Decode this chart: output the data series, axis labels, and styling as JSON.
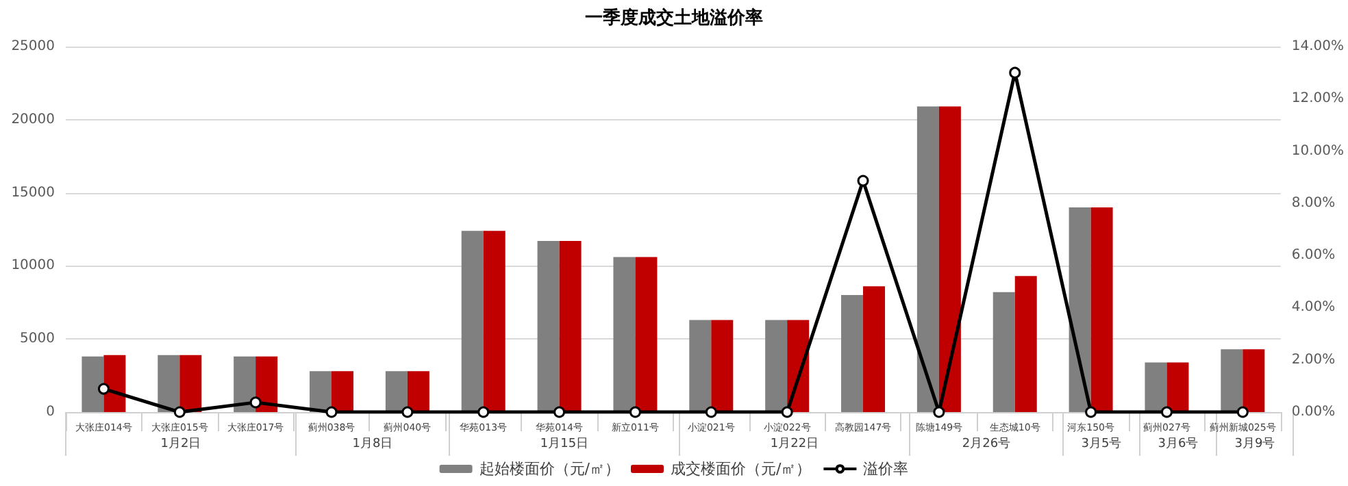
{
  "chart_data": {
    "type": "bar",
    "title": "一季度成交土地溢价率",
    "categories": [
      "大张庄014号",
      "大张庄015号",
      "大张庄017号",
      "蓟州038号",
      "蓟州040号",
      "华苑013号",
      "华苑014号",
      "新立011号",
      "小淀021号",
      "小淀022号",
      "高教园147号",
      "陈塘149号",
      "生态城10号",
      "河东150号",
      "蓟州027号",
      "蓟州新城025号"
    ],
    "series": [
      {
        "name": "起始楼面价（元/㎡）",
        "color": "#808080",
        "values": [
          3800,
          3900,
          3800,
          2800,
          2800,
          12400,
          11700,
          10600,
          6300,
          6300,
          8000,
          20900,
          8200,
          14000,
          3400,
          4300
        ]
      },
      {
        "name": "成交楼面价（元/㎡）",
        "color": "#c00000",
        "values": [
          3900,
          3900,
          3800,
          2800,
          2800,
          12400,
          11700,
          10600,
          6300,
          6300,
          8600,
          20900,
          9300,
          14000,
          3400,
          4300
        ]
      },
      {
        "name": "溢价率",
        "type": "line",
        "axis": "y2",
        "color": "#000000",
        "marker": "circle",
        "values": [
          0.89,
          0,
          0.37,
          0,
          0,
          0,
          0,
          0,
          0,
          0,
          8.86,
          0,
          13.0,
          0,
          0,
          0
        ]
      }
    ],
    "ylim": [
      0,
      25000
    ],
    "yticks": [
      0,
      5000,
      10000,
      15000,
      20000,
      25000
    ],
    "y2lim": [
      0,
      14
    ],
    "y2ticks": [
      {
        "value": 0,
        "label": "0.00%"
      },
      {
        "value": 2,
        "label": "2.00%"
      },
      {
        "value": 4,
        "label": "4.00%"
      },
      {
        "value": 6,
        "label": "6.00%"
      },
      {
        "value": 8,
        "label": "8.00%"
      },
      {
        "value": 10,
        "label": "10.00%"
      },
      {
        "value": 12,
        "label": "12.00%"
      },
      {
        "value": 14,
        "label": "14.00%"
      }
    ],
    "annotations": [
      "1月2日",
      "1月8日",
      "1月15日",
      "1月22日",
      "2月26号",
      "3月5号",
      "3月6号",
      "3月9号"
    ],
    "grid": "y",
    "legend": "bottom"
  }
}
